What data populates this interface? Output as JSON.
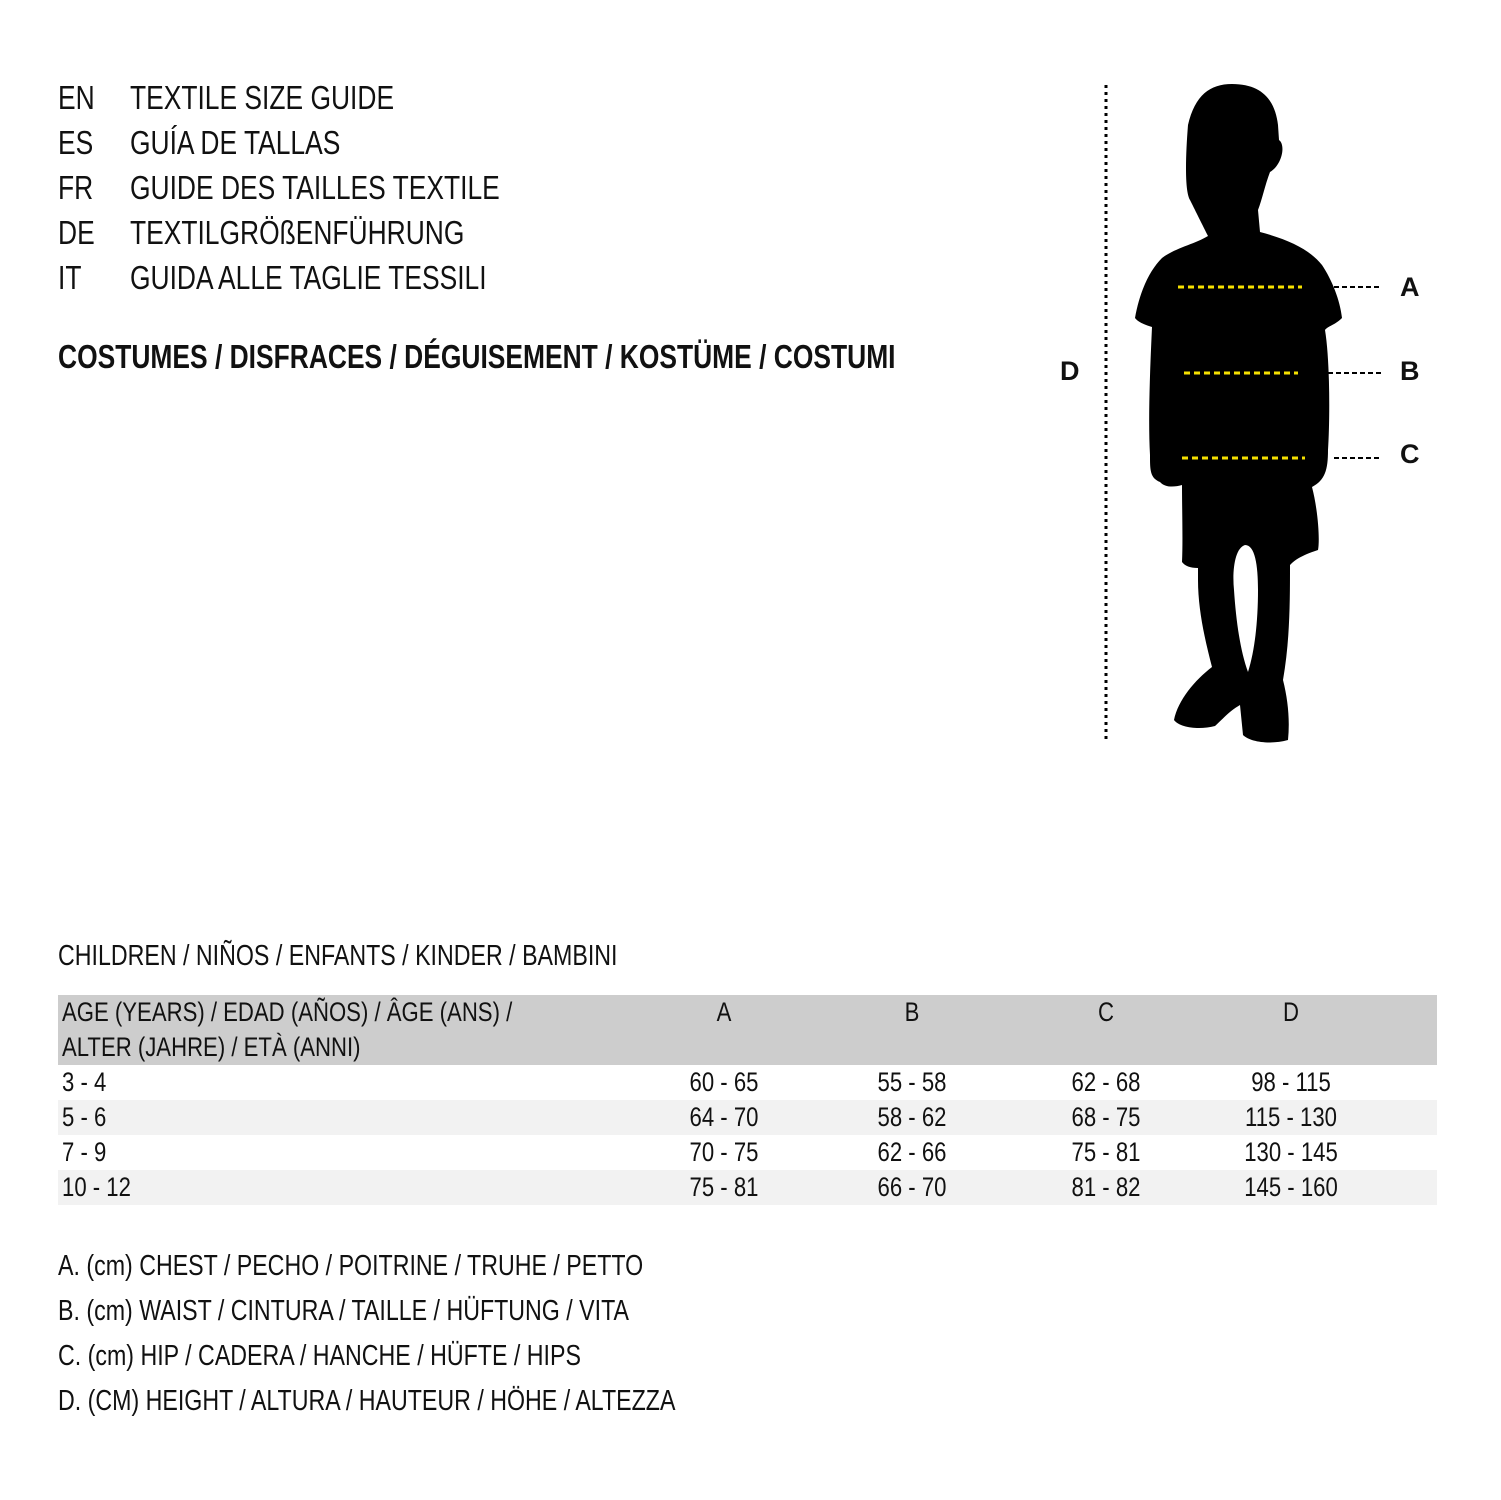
{
  "languages": [
    {
      "code": "EN",
      "title": "TEXTILE SIZE GUIDE"
    },
    {
      "code": "ES",
      "title": "GUÍA DE TALLAS"
    },
    {
      "code": "FR",
      "title": "GUIDE DES TAILLES TEXTILE"
    },
    {
      "code": "DE",
      "title": "TEXTILGRÖßENFÜHRUNG"
    },
    {
      "code": "IT",
      "title": "GUIDA ALLE TAGLIE TESSILI"
    }
  ],
  "category": "COSTUMES / DISFRACES / DÉGUISEMENT / KOSTÜME / COSTUMI",
  "diagram": {
    "labels": {
      "a": "A",
      "b": "B",
      "c": "C",
      "d": "D"
    },
    "measure_line_color": "#f5e000",
    "silhouette_color": "#000000"
  },
  "table": {
    "title": "CHILDREN / NIÑOS / ENFANTS / KINDER / BAMBINI",
    "header_line1": "AGE (YEARS) / EDAD (AÑOS) / ÂGE (ANS) /",
    "header_line2": "ALTER (JAHRE) / ETÀ (ANNI)",
    "columns": [
      "A",
      "B",
      "C",
      "D"
    ],
    "rows": [
      [
        "3 - 4",
        "60 - 65",
        "55 - 58",
        "62 - 68",
        "98 - 115"
      ],
      [
        "5 - 6",
        "64 - 70",
        "58 - 62",
        "68 - 75",
        "115 - 130"
      ],
      [
        "7 - 9",
        "70 - 75",
        "62 - 66",
        "75 - 81",
        "130 - 145"
      ],
      [
        "10 - 12",
        "75 - 81",
        "66 - 70",
        "81 - 82",
        "145 - 160"
      ]
    ],
    "header_color": "#cdcdcd"
  },
  "legend": [
    "A. (cm) CHEST / PECHO / POITRINE / TRUHE / PETTO",
    "B. (cm) WAIST / CINTURA / TAILLE / HÜFTUNG / VITA",
    "C. (cm) HIP / CADERA / HANCHE / HÜFTE / HIPS",
    "D. (CM) HEIGHT / ALTURA / HAUTEUR / HÖHE / ALTEZZA"
  ]
}
